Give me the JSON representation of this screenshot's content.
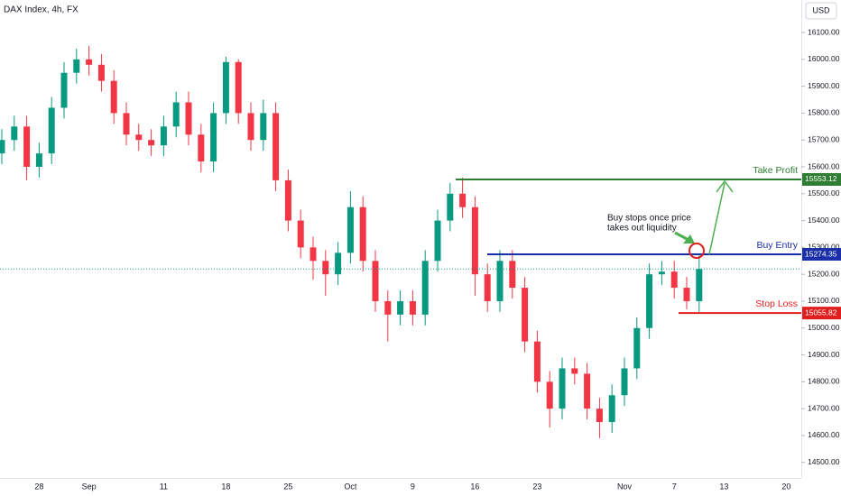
{
  "chart_data": {
    "type": "candlestick",
    "title": "DAX Index, 4h, FX",
    "currency": "USD",
    "up_color": "#089981",
    "down_color": "#f23645",
    "categories": [
      null,
      null,
      null,
      "28",
      null,
      null,
      null,
      "Sep",
      null,
      null,
      null,
      null,
      null,
      "11",
      null,
      null,
      null,
      null,
      "18",
      null,
      null,
      null,
      null,
      "25",
      null,
      null,
      null,
      null,
      "Oct",
      null,
      null,
      null,
      null,
      "9",
      null,
      null,
      null,
      null,
      "16",
      null,
      null,
      null,
      null,
      "23",
      null,
      null,
      null,
      null,
      null,
      null,
      "Nov",
      null,
      null,
      null,
      "7",
      null,
      null,
      null,
      "13",
      null,
      null,
      null,
      null,
      "20"
    ],
    "open": [
      15650,
      15700,
      15750,
      15600,
      15650,
      15820,
      15950,
      16000,
      15980,
      15920,
      15800,
      15720,
      15700,
      15680,
      15750,
      15840,
      15720,
      15620,
      15800,
      15990,
      15800,
      15700,
      15800,
      15550,
      15400,
      15300,
      15250,
      15200,
      15280,
      15450,
      15250,
      15100,
      15050,
      15100,
      15050,
      15250,
      15400,
      15500,
      15450,
      15200,
      15100,
      15250,
      15150,
      14950,
      14800,
      14700,
      14850,
      14830,
      14700,
      14650,
      14750,
      14850,
      15000,
      15200,
      15210,
      15150,
      15100,
      null,
      null,
      null,
      null,
      null,
      null,
      null
    ],
    "high": [
      15740,
      15790,
      15790,
      15690,
      15860,
      15990,
      16040,
      16050,
      16020,
      15960,
      15840,
      15760,
      15740,
      15790,
      15880,
      15880,
      15760,
      15840,
      16010,
      16000,
      15840,
      15850,
      15840,
      15590,
      15440,
      15340,
      15290,
      15320,
      15510,
      15490,
      15290,
      15140,
      15140,
      15140,
      15290,
      15440,
      15540,
      15560,
      15490,
      15240,
      15290,
      15290,
      15190,
      14990,
      14840,
      14890,
      14890,
      14870,
      14740,
      14790,
      14890,
      15040,
      15240,
      15250,
      15250,
      15190,
      15270,
      null,
      null,
      null,
      null,
      null,
      null,
      null
    ],
    "low": [
      15610,
      15660,
      15550,
      15560,
      15610,
      15780,
      15910,
      15940,
      15880,
      15760,
      15680,
      15660,
      15640,
      15640,
      15710,
      15680,
      15580,
      15580,
      15760,
      15760,
      15660,
      15660,
      15510,
      15360,
      15260,
      15180,
      15120,
      15160,
      15240,
      15210,
      15060,
      14950,
      15010,
      15010,
      15010,
      15210,
      15360,
      15410,
      15120,
      15060,
      15060,
      15110,
      14910,
      14760,
      14630,
      14660,
      14790,
      14660,
      14590,
      14610,
      14710,
      14810,
      14960,
      15160,
      15110,
      15070,
      15060,
      null,
      null,
      null,
      null,
      null,
      null,
      null
    ],
    "close": [
      15700,
      15750,
      15600,
      15650,
      15820,
      15950,
      16000,
      15980,
      15920,
      15800,
      15720,
      15700,
      15680,
      15750,
      15840,
      15720,
      15620,
      15800,
      15990,
      15800,
      15700,
      15800,
      15550,
      15400,
      15300,
      15250,
      15200,
      15280,
      15450,
      15250,
      15100,
      15050,
      15100,
      15050,
      15250,
      15400,
      15500,
      15450,
      15200,
      15100,
      15250,
      15150,
      14950,
      14800,
      14700,
      14850,
      14830,
      14700,
      14650,
      14750,
      14850,
      15000,
      15200,
      15210,
      15150,
      15100,
      15220,
      null,
      null,
      null,
      null,
      null,
      null,
      null
    ],
    "ylim": [
      14442,
      16221
    ],
    "yticks": [
      {
        "value": 14500,
        "label": "14500.00"
      },
      {
        "value": 14600,
        "label": "14600.00"
      },
      {
        "value": 14700,
        "label": "14700.00"
      },
      {
        "value": 14800,
        "label": "14800.00"
      },
      {
        "value": 14900,
        "label": "14900.00"
      },
      {
        "value": 15000,
        "label": "15000.00"
      },
      {
        "value": 15100,
        "label": "15100.00"
      },
      {
        "value": 15200,
        "label": "15200.00"
      },
      {
        "value": 15300,
        "label": "15300.00"
      },
      {
        "value": 15400,
        "label": "15400.00"
      },
      {
        "value": 15500,
        "label": "15500.00"
      },
      {
        "value": 15600,
        "label": "15600.00"
      },
      {
        "value": 15700,
        "label": "15700.00"
      },
      {
        "value": 15800,
        "label": "15800.00"
      },
      {
        "value": 15900,
        "label": "15900.00"
      },
      {
        "value": 16000,
        "label": "16000.00"
      },
      {
        "value": 16100,
        "label": "16100.00"
      }
    ],
    "levels": [
      {
        "label": "Take Profit",
        "value": 15553.12,
        "color": "#2e7d32"
      },
      {
        "label": "Buy Entry",
        "value": 15274.35,
        "color": "#1a2fa8"
      },
      {
        "label": "Stop Loss",
        "value": 15055.82,
        "color": "#e01e1e"
      }
    ],
    "annotation": [
      "Buy stops once price",
      "takes out liquidity"
    ]
  }
}
